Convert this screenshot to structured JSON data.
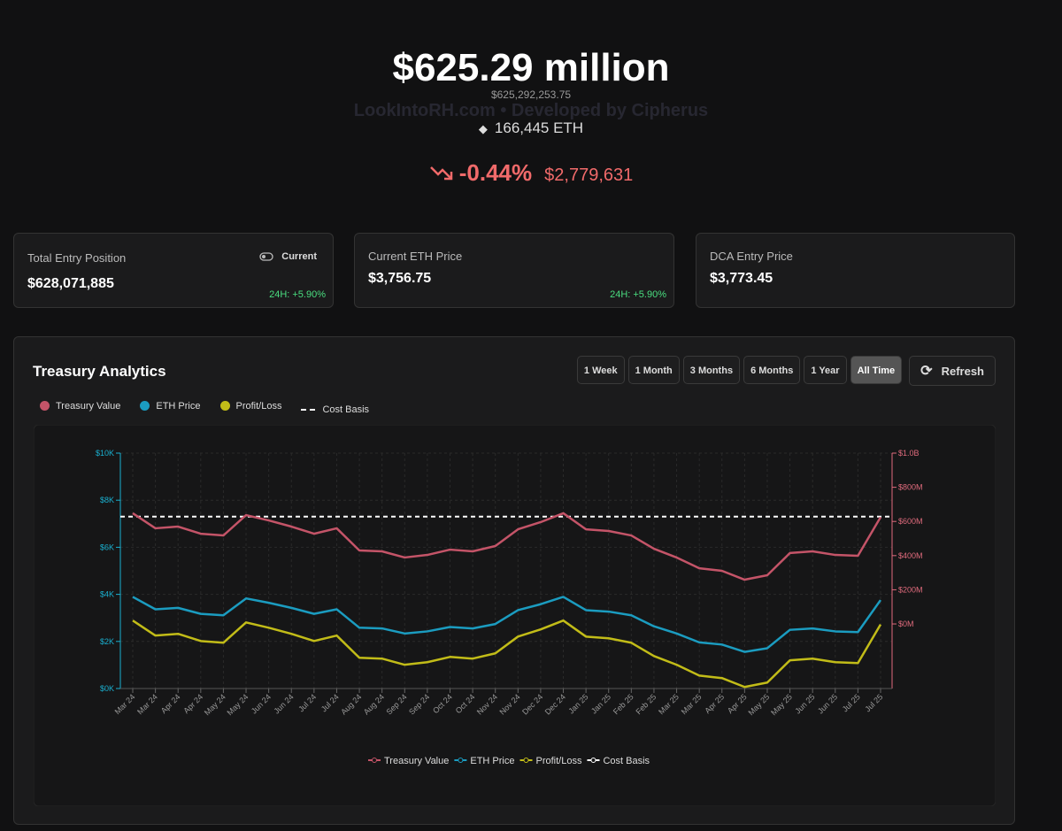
{
  "header": {
    "amount": "$625.29 million",
    "exact": "$625,292,253.75",
    "watermark": "LookIntoRH.com • Developed by Cipherus",
    "eth_holdings": "166,445 ETH",
    "change_pct": "-0.44%",
    "change_usd": "$2,779,631"
  },
  "cards": [
    {
      "label": "Total Entry Position",
      "toggle": "Current",
      "value": "$628,071,885",
      "change": "24H: +5.90%"
    },
    {
      "label": "Current ETH Price",
      "value": "$3,756.75",
      "change": "24H: +5.90%"
    },
    {
      "label": "DCA Entry Price",
      "value": "$3,773.45"
    }
  ],
  "analytics": {
    "title": "Treasury Analytics",
    "ranges": [
      {
        "label": "1 Week",
        "selected": false
      },
      {
        "label": "1 Month",
        "selected": false
      },
      {
        "label": "3 Months",
        "selected": false
      },
      {
        "label": "6 Months",
        "selected": false
      },
      {
        "label": "1 Year",
        "selected": false
      },
      {
        "label": "All Time",
        "selected": true
      }
    ],
    "refresh": "Refresh"
  },
  "chart_data": {
    "type": "line",
    "categories": [
      "Mar 24",
      "Mar 24",
      "Apr 24",
      "Apr 24",
      "May 24",
      "May 24",
      "Jun 24",
      "Jun 24",
      "Jul 24",
      "Jul 24",
      "Aug 24",
      "Aug 24",
      "Sep 24",
      "Sep 24",
      "Oct 24",
      "Oct 24",
      "Nov 24",
      "Nov 24",
      "Dec 24",
      "Dec 24",
      "Jan 25",
      "Jan 25",
      "Feb 25",
      "Feb 25",
      "Mar 25",
      "Mar 25",
      "Apr 25",
      "Apr 25",
      "May 25",
      "May 25",
      "Jun 25",
      "Jun 25",
      "Jul 25",
      "Jul 25"
    ],
    "series": [
      {
        "name": "Treasury Value",
        "color": "#c45468",
        "axis": "y2",
        "values": [
          648000000,
          560000000,
          570000000,
          528000000,
          518000000,
          637000000,
          606000000,
          570000000,
          528000000,
          560000000,
          430000000,
          425000000,
          389000000,
          404000000,
          435000000,
          425000000,
          456000000,
          554000000,
          596000000,
          648000000,
          554000000,
          544000000,
          518000000,
          440000000,
          389000000,
          326000000,
          311000000,
          259000000,
          285000000,
          415000000,
          425000000,
          404000000,
          399000000,
          625000000
        ]
      },
      {
        "name": "ETH Price",
        "color": "#1b9cc0",
        "values": [
          3893,
          3365,
          3425,
          3172,
          3112,
          3827,
          3641,
          3425,
          3172,
          3365,
          2583,
          2553,
          2337,
          2427,
          2613,
          2553,
          2740,
          3328,
          3581,
          3893,
          3328,
          3268,
          3112,
          2643,
          2337,
          1959,
          1868,
          1556,
          1712,
          2493,
          2553,
          2427,
          2397,
          3757
        ]
      },
      {
        "name": "Profit/Loss",
        "color": "#c2bc18",
        "axis": "y2",
        "values": [
          20000000,
          -68000000,
          -58000000,
          -100000000,
          -110000000,
          9000000,
          -22000000,
          -58000000,
          -100000000,
          -68000000,
          -198000000,
          -203000000,
          -239000000,
          -224000000,
          -193000000,
          -203000000,
          -172000000,
          -74000000,
          -32000000,
          20000000,
          -74000000,
          -84000000,
          -110000000,
          -188000000,
          -239000000,
          -302000000,
          -317000000,
          -369000000,
          -343000000,
          -213000000,
          -203000000,
          -224000000,
          -229000000,
          -3000000
        ]
      }
    ],
    "reference_lines": [
      {
        "name": "Cost Basis",
        "value": 628071885,
        "color": "#ffffff",
        "axis": "y2",
        "dashed": true
      }
    ],
    "ylim": [
      0,
      10000
    ],
    "yticks": [
      {
        "value": 0,
        "label": "$0K"
      },
      {
        "value": 2000,
        "label": "$2K"
      },
      {
        "value": 4000,
        "label": "$4K"
      },
      {
        "value": 6000,
        "label": "$6K"
      },
      {
        "value": 8000,
        "label": "$8K"
      },
      {
        "value": 10000,
        "label": "$10K"
      }
    ],
    "y2lim": [
      -378000000,
      1000000000
    ],
    "y2ticks": [
      {
        "value": 0,
        "label": "$0M"
      },
      {
        "value": 200000000,
        "label": "$200M"
      },
      {
        "value": 400000000,
        "label": "$400M"
      },
      {
        "value": 600000000,
        "label": "$600M"
      },
      {
        "value": 800000000,
        "label": "$800M"
      },
      {
        "value": 1000000000,
        "label": "$1.0B"
      }
    ],
    "grid": true
  }
}
